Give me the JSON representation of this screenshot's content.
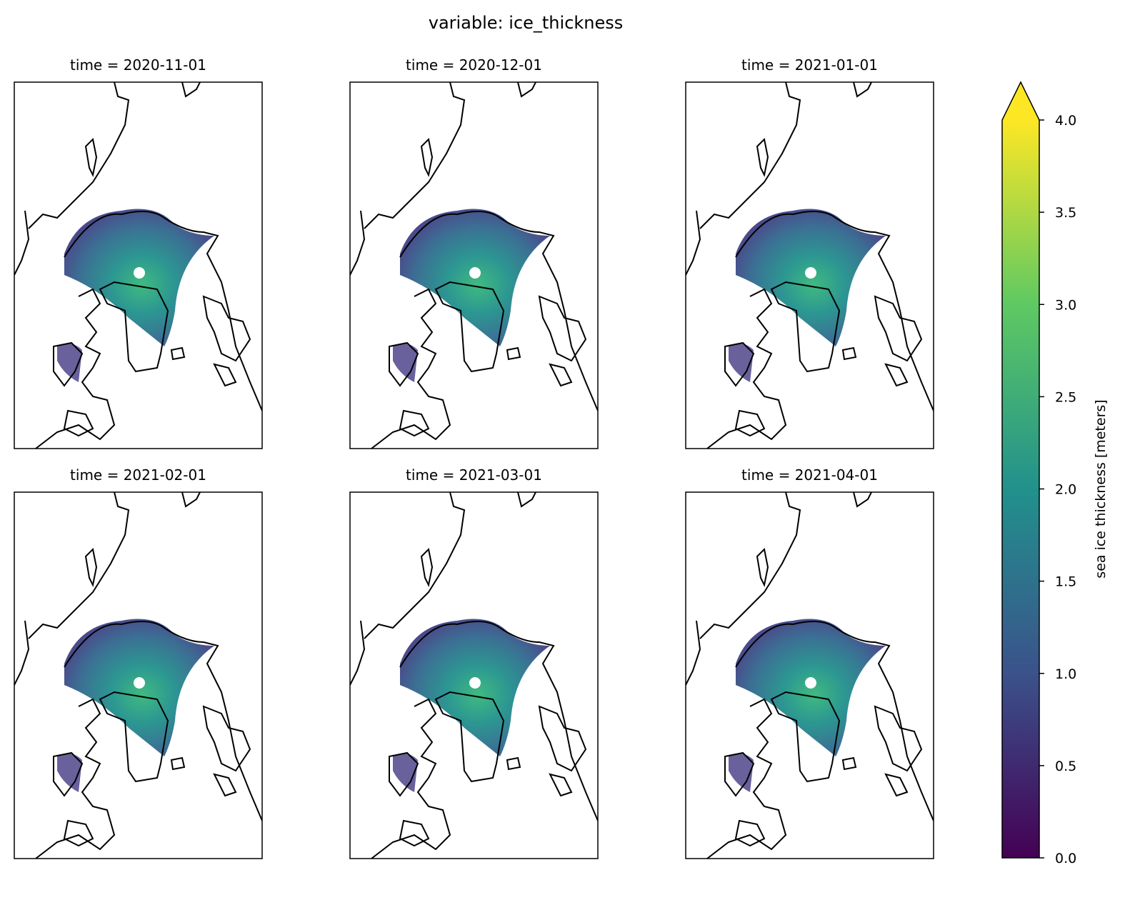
{
  "title": "variable: ice_thickness",
  "panels": [
    {
      "title": "time = 2020-11-01"
    },
    {
      "title": "time = 2020-12-01"
    },
    {
      "title": "time = 2021-01-01"
    },
    {
      "title": "time = 2021-02-01"
    },
    {
      "title": "time = 2021-03-01"
    },
    {
      "title": "time = 2021-04-01"
    }
  ],
  "colorbar": {
    "label": "sea ice thickness [meters]",
    "lim": [
      0,
      4
    ],
    "extend": "max",
    "colors": [
      "#440154",
      "#3b528b",
      "#21918c",
      "#5ec962",
      "#fde725"
    ],
    "ticks": [
      {
        "value": 0,
        "label": "0.0"
      },
      {
        "value": 0.5,
        "label": "0.5"
      },
      {
        "value": 1,
        "label": "1.0"
      },
      {
        "value": 1.5,
        "label": "1.5"
      },
      {
        "value": 2,
        "label": "2.0"
      },
      {
        "value": 2.5,
        "label": "2.5"
      },
      {
        "value": 3,
        "label": "3.0"
      },
      {
        "value": 3.5,
        "label": "3.5"
      },
      {
        "value": 4,
        "label": "4.0"
      }
    ]
  }
}
